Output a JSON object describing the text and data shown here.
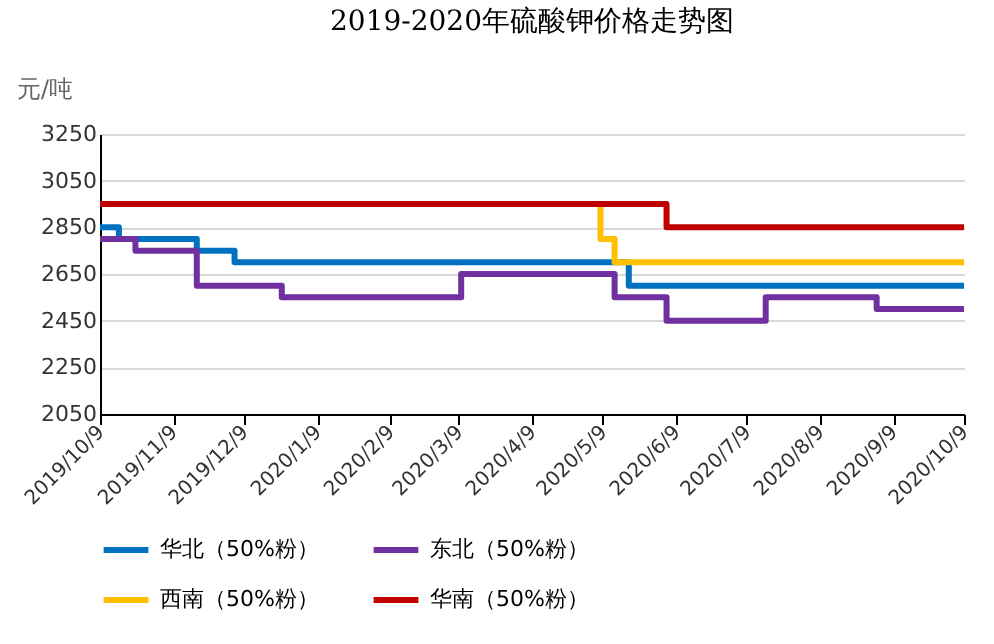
{
  "chart_data": {
    "type": "step",
    "title": "2019-2020年硫酸钾价格走势图",
    "ylabel": "元/吨",
    "series": [
      {
        "name": "华北（50%粉）",
        "color": "#0070c0",
        "x": [
          "2019-10-09",
          "2019-10-17",
          "2019-11-19",
          "2019-12-05",
          "2020-05-20",
          "2020-10-09"
        ],
        "values": [
          2850,
          2800,
          2750,
          2700,
          2600,
          2600
        ]
      },
      {
        "name": "东北（50%粉）",
        "color": "#7030a0",
        "x": [
          "2019-10-09",
          "2019-10-24",
          "2019-11-19",
          "2019-12-25",
          "2020-03-10",
          "2020-05-14",
          "2020-06-05",
          "2020-07-17",
          "2020-09-02",
          "2020-10-09"
        ],
        "values": [
          2800,
          2750,
          2600,
          2550,
          2650,
          2550,
          2450,
          2550,
          2500,
          2500
        ]
      },
      {
        "name": "西南（50%粉）",
        "color": "#ffc000",
        "x": [
          "2020-05-07",
          "2020-05-08",
          "2020-05-14",
          "2020-10-09"
        ],
        "values": [
          2950,
          2800,
          2700,
          2700
        ]
      },
      {
        "name": "华南（50%粉）",
        "color": "#c00000",
        "x": [
          "2019-10-09",
          "2020-06-05",
          "2020-10-09"
        ],
        "values": [
          2950,
          2850,
          2850
        ]
      }
    ],
    "xlim": [
      "2019-10-09",
      "2020-10-09"
    ],
    "xticks": [
      {
        "value": "2019-10-09",
        "label": "2019/10/9"
      },
      {
        "value": "2019-11-09",
        "label": "2019/11/9"
      },
      {
        "value": "2019-12-09",
        "label": "2019/12/9"
      },
      {
        "value": "2020-01-09",
        "label": "2020/1/9"
      },
      {
        "value": "2020-02-09",
        "label": "2020/2/9"
      },
      {
        "value": "2020-03-09",
        "label": "2020/3/9"
      },
      {
        "value": "2020-04-09",
        "label": "2020/4/9"
      },
      {
        "value": "2020-05-09",
        "label": "2020/5/9"
      },
      {
        "value": "2020-06-09",
        "label": "2020/6/9"
      },
      {
        "value": "2020-07-09",
        "label": "2020/7/9"
      },
      {
        "value": "2020-08-09",
        "label": "2020/8/9"
      },
      {
        "value": "2020-09-09",
        "label": "2020/9/9"
      },
      {
        "value": "2020-10-09",
        "label": "2020/10/9"
      }
    ],
    "ylim": [
      2050,
      3250
    ],
    "yticks": [
      2050,
      2250,
      2450,
      2650,
      2850,
      3050,
      3250
    ],
    "grid": "y",
    "legend": "bottom"
  }
}
